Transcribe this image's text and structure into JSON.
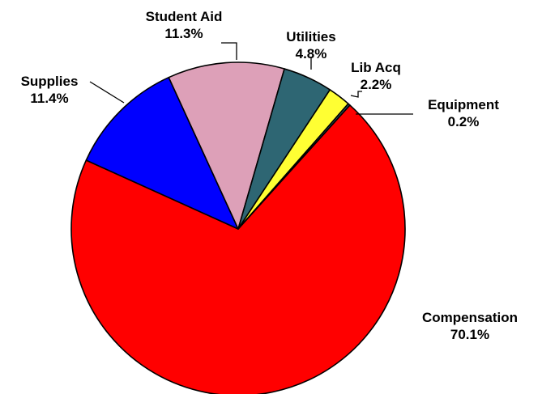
{
  "chart_data": {
    "type": "pie",
    "title": "",
    "slices": [
      {
        "name": "Compensation",
        "value": 70.1,
        "label": "70.1%",
        "color": "#ff0000"
      },
      {
        "name": "Supplies",
        "value": 11.4,
        "label": "11.4%",
        "color": "#0000ff"
      },
      {
        "name": "Student Aid",
        "value": 11.3,
        "label": "11.3%",
        "color": "#dda0b8"
      },
      {
        "name": "Utilities",
        "value": 4.8,
        "label": "4.8%",
        "color": "#2e6673"
      },
      {
        "name": "Lib Acq",
        "value": 2.2,
        "label": "2.2%",
        "color": "#ffff33"
      },
      {
        "name": "Equipment",
        "value": 0.2,
        "label": "0.2%",
        "color": "#2e6673"
      }
    ]
  }
}
